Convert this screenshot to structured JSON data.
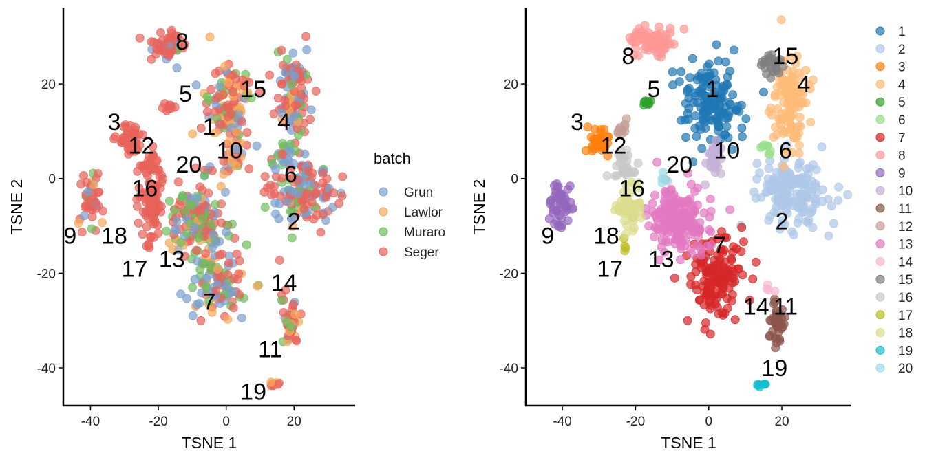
{
  "chart_data": [
    {
      "type": "scatter",
      "title": "",
      "xlabel": "TSNE 1",
      "ylabel": "TSNE 2",
      "xlim": [
        -48,
        38
      ],
      "ylim": [
        -48,
        36
      ],
      "xticks": [
        -40,
        -20,
        0,
        20
      ],
      "yticks": [
        -40,
        -20,
        0,
        20
      ],
      "xtick_labels": [
        "-40",
        "-20",
        "0",
        "20"
      ],
      "ytick_labels": [
        "-40",
        "-20",
        "0",
        "20"
      ],
      "color_by": "batch",
      "legend_title": "batch",
      "legend_position": "right",
      "legend": [
        {
          "name": "Grun",
          "color": "#7B9FCF"
        },
        {
          "name": "Lawlor",
          "color": "#F7A85A"
        },
        {
          "name": "Muraro",
          "color": "#6EBD5E"
        },
        {
          "name": "Seger",
          "color": "#E8625A"
        }
      ],
      "clusters": [
        {
          "id": "1",
          "label_pos": [
            -5,
            11
          ],
          "blobs": [
            {
              "x": 1,
              "y": 16,
              "sx": 4.2,
              "sy": 5.5,
              "n": 120,
              "mix": [
                0.15,
                0.25,
                0.15,
                0.45
              ]
            }
          ]
        },
        {
          "id": "2",
          "label_pos": [
            20,
            -9
          ],
          "blobs": [
            {
              "x": 23,
              "y": -3,
              "sx": 5.5,
              "sy": 4,
              "n": 140,
              "mix": [
                0.35,
                0.05,
                0.1,
                0.5
              ]
            }
          ]
        },
        {
          "id": "3",
          "label_pos": [
            -33,
            12
          ],
          "blobs": [
            {
              "x": -29,
              "y": 8,
              "sx": 2.2,
              "sy": 1.8,
              "n": 40,
              "mix": [
                0,
                0,
                0,
                1
              ]
            }
          ]
        },
        {
          "id": "4",
          "label_pos": [
            17,
            12
          ],
          "blobs": [
            {
              "x": 20,
              "y": 17,
              "sx": 3,
              "sy": 5.5,
              "n": 100,
              "mix": [
                0.3,
                0.1,
                0.15,
                0.45
              ]
            }
          ]
        },
        {
          "id": "5",
          "label_pos": [
            -12,
            18
          ],
          "blobs": [
            {
              "x": -17,
              "y": 15,
              "sx": 1.5,
              "sy": 1.2,
              "n": 8,
              "mix": [
                0,
                0,
                0,
                1
              ]
            }
          ]
        },
        {
          "id": "6",
          "label_pos": [
            19,
            1
          ],
          "blobs": [
            {
              "x": 17,
              "y": 5,
              "sx": 2,
              "sy": 2,
              "n": 20,
              "mix": [
                0.6,
                0,
                0.2,
                0.2
              ]
            }
          ]
        },
        {
          "id": "7",
          "label_pos": [
            -5,
            -26
          ],
          "blobs": [
            {
              "x": -2,
              "y": -22,
              "sx": 4.5,
              "sy": 4.5,
              "n": 110,
              "mix": [
                0.3,
                0.15,
                0.2,
                0.35
              ]
            }
          ]
        },
        {
          "id": "8",
          "label_pos": [
            -13,
            29
          ],
          "blobs": [
            {
              "x": -18,
              "y": 28,
              "sx": 3,
              "sy": 1.8,
              "n": 60,
              "mix": [
                0.15,
                0,
                0.05,
                0.8
              ]
            }
          ]
        },
        {
          "id": "9",
          "label_pos": [
            -46,
            -12
          ],
          "blobs": [
            {
              "x": -40,
              "y": -5,
              "sx": 1.8,
              "sy": 3.2,
              "n": 45,
              "mix": [
                0.1,
                0.1,
                0.1,
                0.7
              ]
            }
          ]
        },
        {
          "id": "10",
          "label_pos": [
            1,
            6
          ],
          "blobs": [
            {
              "x": 2,
              "y": 4,
              "sx": 1.8,
              "sy": 2.2,
              "n": 30,
              "mix": [
                0.2,
                0.4,
                0.1,
                0.3
              ]
            }
          ]
        },
        {
          "id": "11",
          "label_pos": [
            13,
            -36
          ],
          "blobs": [
            {
              "x": 19,
              "y": -30,
              "sx": 1.6,
              "sy": 2.5,
              "n": 40,
              "mix": [
                0.15,
                0.15,
                0.1,
                0.6
              ]
            }
          ]
        },
        {
          "id": "12",
          "label_pos": [
            -25,
            7
          ],
          "blobs": [
            {
              "x": -22,
              "y": 3,
              "sx": 2,
              "sy": 1.8,
              "n": 30,
              "mix": [
                0,
                0,
                0,
                1
              ]
            }
          ]
        },
        {
          "id": "13",
          "label_pos": [
            -16,
            -17
          ],
          "blobs": [
            {
              "x": -8,
              "y": -9,
              "sx": 5,
              "sy": 4.5,
              "n": 150,
              "mix": [
                0.2,
                0.05,
                0.35,
                0.4
              ]
            }
          ]
        },
        {
          "id": "14",
          "label_pos": [
            17,
            -22
          ],
          "blobs": [
            {
              "x": 17,
              "y": -25,
              "sx": 0.8,
              "sy": 1,
              "n": 4,
              "mix": [
                0,
                0,
                0.3,
                0.7
              ]
            }
          ]
        },
        {
          "id": "15",
          "label_pos": [
            8,
            19
          ],
          "blobs": [
            {
              "x": 20,
              "y": 22,
              "sx": 2,
              "sy": 1.5,
              "n": 25,
              "mix": [
                0.4,
                0,
                0.1,
                0.5
              ]
            }
          ]
        },
        {
          "id": "16",
          "label_pos": [
            -24,
            -2
          ],
          "blobs": [
            {
              "x": -22,
              "y": -3,
              "sx": 2,
              "sy": 2,
              "n": 30,
              "mix": [
                0,
                0,
                0,
                1
              ]
            }
          ]
        },
        {
          "id": "17",
          "label_pos": [
            -27,
            -19
          ],
          "blobs": [
            {
              "x": -23,
              "y": -14,
              "sx": 0.5,
              "sy": 1,
              "n": 4,
              "mix": [
                0,
                0,
                0,
                1
              ]
            }
          ]
        },
        {
          "id": "18",
          "label_pos": [
            -33,
            -12
          ],
          "blobs": [
            {
              "x": -22,
              "y": -7,
              "sx": 2.2,
              "sy": 3.5,
              "n": 45,
              "mix": [
                0,
                0,
                0,
                1
              ]
            }
          ]
        },
        {
          "id": "19",
          "label_pos": [
            8,
            -45
          ],
          "blobs": [
            {
              "x": 14.5,
              "y": -43.5,
              "sx": 0.8,
              "sy": 0.4,
              "n": 8,
              "mix": [
                0,
                0.4,
                0,
                0.6
              ]
            }
          ]
        },
        {
          "id": "20",
          "label_pos": [
            -11,
            3
          ],
          "blobs": [
            {
              "x": -6,
              "y": 1,
              "sx": 1.5,
              "sy": 1.5,
              "n": 8,
              "mix": [
                0.2,
                0,
                0.4,
                0.4
              ]
            }
          ]
        }
      ]
    },
    {
      "type": "scatter",
      "title": "",
      "xlabel": "TSNE 1",
      "ylabel": "TSNE 2",
      "xlim": [
        -50,
        39
      ],
      "ylim": [
        -48,
        36
      ],
      "xticks": [
        -40,
        -20,
        0,
        20
      ],
      "yticks": [
        -40,
        -20,
        0,
        20
      ],
      "xtick_labels": [
        "-40",
        "-20",
        "0",
        "20"
      ],
      "ytick_labels": [
        "-40",
        "-20",
        "0",
        "20"
      ],
      "color_by": "cluster",
      "legend_title": "",
      "legend_position": "right",
      "legend": [
        {
          "name": "1",
          "color": "#1F77B4"
        },
        {
          "name": "2",
          "color": "#AEC7E8"
        },
        {
          "name": "3",
          "color": "#FF7F0E"
        },
        {
          "name": "4",
          "color": "#FFBB78"
        },
        {
          "name": "5",
          "color": "#2CA02C"
        },
        {
          "name": "6",
          "color": "#98DF8A"
        },
        {
          "name": "7",
          "color": "#D62728"
        },
        {
          "name": "8",
          "color": "#FF9896"
        },
        {
          "name": "9",
          "color": "#9467BD"
        },
        {
          "name": "10",
          "color": "#C5B0D5"
        },
        {
          "name": "11",
          "color": "#8C564B"
        },
        {
          "name": "12",
          "color": "#C49C94"
        },
        {
          "name": "13",
          "color": "#E377C2"
        },
        {
          "name": "14",
          "color": "#F7B6D2"
        },
        {
          "name": "15",
          "color": "#7F7F7F"
        },
        {
          "name": "16",
          "color": "#C7C7C7"
        },
        {
          "name": "17",
          "color": "#BCBD22"
        },
        {
          "name": "18",
          "color": "#DBDB8D"
        },
        {
          "name": "19",
          "color": "#17BECF"
        },
        {
          "name": "20",
          "color": "#9EDAE5"
        }
      ],
      "clusters": [
        {
          "id": "1",
          "label_pos": [
            1,
            19
          ],
          "blobs": [
            {
              "x": 0,
              "y": 16,
              "sx": 4.5,
              "sy": 5.5,
              "n": 150
            }
          ]
        },
        {
          "id": "2",
          "label_pos": [
            20,
            -9
          ],
          "blobs": [
            {
              "x": 23,
              "y": -3,
              "sx": 5.5,
              "sy": 4.5,
              "n": 160
            }
          ]
        },
        {
          "id": "3",
          "label_pos": [
            -36,
            12
          ],
          "blobs": [
            {
              "x": -30,
              "y": 8,
              "sx": 2,
              "sy": 1.8,
              "n": 40
            }
          ]
        },
        {
          "id": "4",
          "label_pos": [
            26,
            20
          ],
          "blobs": [
            {
              "x": 22,
              "y": 16,
              "sx": 2.8,
              "sy": 5.5,
              "n": 120
            }
          ]
        },
        {
          "id": "5",
          "label_pos": [
            -15,
            19
          ],
          "blobs": [
            {
              "x": -17,
              "y": 16,
              "sx": 1,
              "sy": 0.7,
              "n": 8
            }
          ]
        },
        {
          "id": "6",
          "label_pos": [
            21,
            6
          ],
          "blobs": [
            {
              "x": 16,
              "y": 6,
              "sx": 1,
              "sy": 1,
              "n": 8
            }
          ]
        },
        {
          "id": "7",
          "label_pos": [
            3,
            -14
          ],
          "blobs": [
            {
              "x": 2,
              "y": -21,
              "sx": 4.5,
              "sy": 5,
              "n": 150
            }
          ]
        },
        {
          "id": "8",
          "label_pos": [
            -22,
            26
          ],
          "blobs": [
            {
              "x": -15,
              "y": 29,
              "sx": 3.5,
              "sy": 1.8,
              "n": 80
            }
          ]
        },
        {
          "id": "9",
          "label_pos": [
            -44,
            -12
          ],
          "blobs": [
            {
              "x": -41,
              "y": -5,
              "sx": 1.8,
              "sy": 3,
              "n": 50
            }
          ]
        },
        {
          "id": "10",
          "label_pos": [
            5,
            6
          ],
          "blobs": [
            {
              "x": 1,
              "y": 4,
              "sx": 1.8,
              "sy": 2,
              "n": 30
            }
          ]
        },
        {
          "id": "11",
          "label_pos": [
            21,
            -27
          ],
          "blobs": [
            {
              "x": 19,
              "y": -30,
              "sx": 1.5,
              "sy": 2.5,
              "n": 45
            }
          ]
        },
        {
          "id": "12",
          "label_pos": [
            -26,
            7
          ],
          "blobs": [
            {
              "x": -24,
              "y": 11,
              "sx": 1.5,
              "sy": 1.2,
              "n": 10
            }
          ]
        },
        {
          "id": "13",
          "label_pos": [
            -13,
            -17
          ],
          "blobs": [
            {
              "x": -8,
              "y": -9,
              "sx": 5,
              "sy": 4.5,
              "n": 170
            }
          ]
        },
        {
          "id": "14",
          "label_pos": [
            13,
            -27
          ],
          "blobs": [
            {
              "x": 16,
              "y": -24,
              "sx": 0.8,
              "sy": 1,
              "n": 4
            }
          ]
        },
        {
          "id": "15",
          "label_pos": [
            21,
            26
          ],
          "blobs": [
            {
              "x": 17,
              "y": 24,
              "sx": 1.5,
              "sy": 1.5,
              "n": 25
            }
          ]
        },
        {
          "id": "16",
          "label_pos": [
            -21,
            -2
          ],
          "blobs": [
            {
              "x": -23,
              "y": 3,
              "sx": 2,
              "sy": 1.8,
              "n": 30
            }
          ]
        },
        {
          "id": "17",
          "label_pos": [
            -27,
            -19
          ],
          "blobs": [
            {
              "x": -23,
              "y": -14,
              "sx": 0.5,
              "sy": 0.8,
              "n": 4
            }
          ]
        },
        {
          "id": "18",
          "label_pos": [
            -28,
            -12
          ],
          "blobs": [
            {
              "x": -22,
              "y": -7,
              "sx": 2.2,
              "sy": 3.2,
              "n": 50
            }
          ]
        },
        {
          "id": "19",
          "label_pos": [
            18,
            -40
          ],
          "blobs": [
            {
              "x": 14.5,
              "y": -43.5,
              "sx": 0.8,
              "sy": 0.4,
              "n": 8
            }
          ]
        },
        {
          "id": "20",
          "label_pos": [
            -8,
            3
          ],
          "blobs": [
            {
              "x": -12,
              "y": 0,
              "sx": 0.8,
              "sy": 0.8,
              "n": 5
            }
          ]
        }
      ]
    }
  ]
}
